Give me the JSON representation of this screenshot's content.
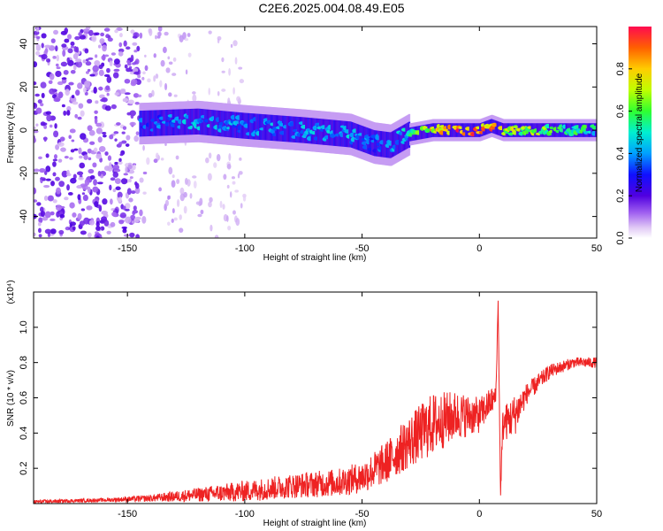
{
  "title": "C2E6.2025.004.08.49.E05",
  "colors": {
    "snr_line": "#ee2222",
    "colormap": [
      "#ffffff",
      "#d8b0f0",
      "#8b3cf0",
      "#5a00e0",
      "#2a30ff",
      "#00b0ff",
      "#00f0c8",
      "#40ff40",
      "#c8ff00",
      "#ffd000",
      "#ff7000",
      "#ff1a3c"
    ]
  },
  "chart_data": [
    {
      "type": "heatmap",
      "xlabel": "Height of straight line (km)",
      "ylabel": "Frequency (Hz)",
      "xlim": [
        -190,
        50
      ],
      "ylim": [
        -50,
        48
      ],
      "xticks": [
        -150,
        -100,
        -50,
        0,
        50
      ],
      "yticks": [
        -40,
        -20,
        0,
        20,
        40
      ],
      "colorbar": {
        "label": "Normalized spectral amplitude",
        "range": [
          0.0,
          1.0
        ],
        "ticks": [
          0.0,
          0.2,
          0.4,
          0.6,
          0.8
        ]
      },
      "band": {
        "x": [
          -145,
          -120,
          -100,
          -75,
          -55,
          -45,
          -38,
          -30,
          -20,
          -10,
          0,
          5,
          10,
          20,
          35,
          50
        ],
        "center": [
          3,
          4,
          2,
          0,
          -2,
          -6,
          -7,
          -2,
          0,
          0,
          0,
          2,
          0,
          0,
          0,
          0
        ],
        "amplitude": [
          0.35,
          0.45,
          0.4,
          0.45,
          0.45,
          0.35,
          0.4,
          0.5,
          0.8,
          0.95,
          0.95,
          0.9,
          0.7,
          0.7,
          0.6,
          0.55
        ]
      },
      "noise_region_x": [
        -190,
        -145
      ],
      "scatter_region_x": [
        -145,
        -100
      ]
    },
    {
      "type": "line",
      "xlabel": "Height of straight line (km)",
      "ylabel": "SNR (10 * v/v)",
      "scale_label": "(x10⁴)",
      "xlim": [
        -190,
        50
      ],
      "ylim": [
        0,
        1.2
      ],
      "xticks": [
        -150,
        -100,
        -50,
        0,
        50
      ],
      "yticks": [
        0.2,
        0.4,
        0.6,
        0.8,
        1.0
      ],
      "series": [
        {
          "x": [
            -190,
            -160,
            -140,
            -120,
            -100,
            -80,
            -60,
            -50,
            -40,
            -30,
            -20,
            -10,
            0,
            5,
            7,
            8,
            9,
            10,
            15,
            20,
            30,
            40,
            50
          ],
          "y": [
            0.01,
            0.02,
            0.03,
            0.05,
            0.07,
            0.1,
            0.12,
            0.15,
            0.23,
            0.35,
            0.45,
            0.5,
            0.5,
            0.58,
            0.6,
            1.15,
            0.05,
            0.45,
            0.5,
            0.62,
            0.75,
            0.8,
            0.8
          ],
          "noise": [
            0.01,
            0.01,
            0.02,
            0.04,
            0.06,
            0.07,
            0.08,
            0.09,
            0.12,
            0.15,
            0.18,
            0.14,
            0.1,
            0.08,
            0.06,
            0.02,
            0.02,
            0.1,
            0.12,
            0.06,
            0.04,
            0.03,
            0.03
          ]
        }
      ]
    }
  ]
}
